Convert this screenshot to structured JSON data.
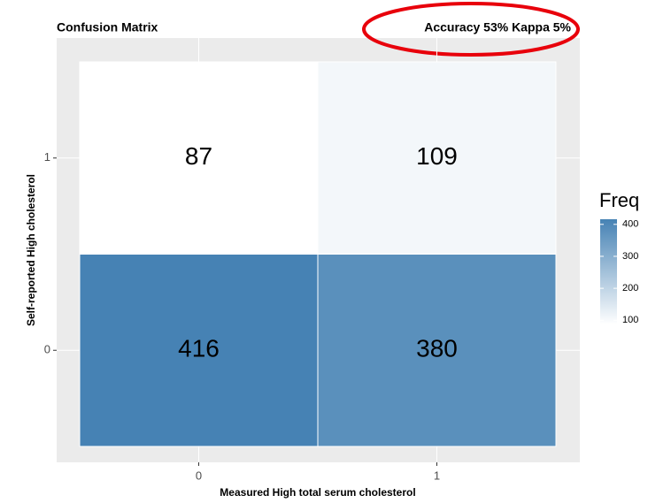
{
  "chart_data": {
    "type": "heatmap",
    "title": "Confusion Matrix",
    "subtitle": "Accuracy 53% Kappa 5%",
    "x_label": "Measured High total serum cholesterol",
    "y_label": "Self-reported High cholesterol",
    "x_categories": [
      "0",
      "1"
    ],
    "y_categories": [
      "0",
      "1"
    ],
    "values": [
      [
        416,
        380
      ],
      [
        87,
        109
      ]
    ],
    "legend_title": "Freq",
    "color_low": "#ffffff",
    "color_high": "#4682b4",
    "colorbar_lim": [
      87,
      416
    ],
    "colorbar_ticks": [
      100,
      200,
      300,
      400
    ]
  }
}
